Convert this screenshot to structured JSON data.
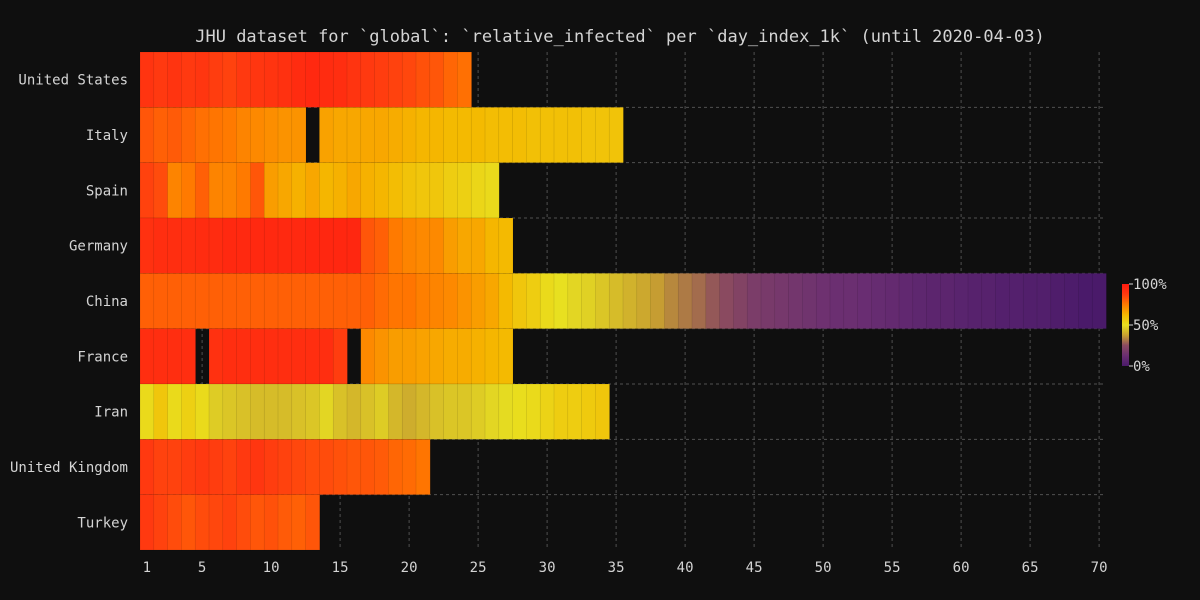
{
  "chart_data": {
    "type": "heatmap",
    "title": "JHU dataset for `global`: `relative_infected` per `day_index_1k` (until 2020-04-03)",
    "xlabel": "",
    "ylabel": "",
    "x_ticks": [
      1,
      5,
      10,
      15,
      20,
      25,
      30,
      35,
      40,
      45,
      50,
      55,
      60,
      65,
      70
    ],
    "xlim": [
      0.5,
      70.5
    ],
    "grid": true,
    "colormap": [
      "#4a1a6a",
      "#6a2e72",
      "#8a4a60",
      "#c8a030",
      "#e8e020",
      "#f5b800",
      "#ff7a00",
      "#ff3a10",
      "#ff1a10"
    ],
    "colorbar": {
      "ticks": [
        "100%",
        "50%",
        "0%"
      ],
      "range": [
        0,
        100
      ],
      "unit": "percent"
    },
    "series": [
      {
        "name": "United States",
        "values": [
          90,
          88,
          90,
          88,
          89,
          87,
          86,
          88,
          89,
          90,
          91,
          93,
          94,
          93,
          92,
          90,
          88,
          87,
          86,
          85,
          83,
          82,
          79,
          77
        ]
      },
      {
        "name": "Italy",
        "values": [
          82,
          80,
          81,
          79,
          77,
          76,
          75,
          73,
          72,
          71,
          70,
          70,
          null,
          67,
          66,
          66,
          66,
          66,
          65,
          64,
          63,
          63,
          62,
          62,
          62,
          61,
          61,
          61,
          60,
          60,
          60,
          60,
          59,
          59,
          59
        ]
      },
      {
        "name": "Spain",
        "values": [
          86,
          84,
          73,
          75,
          80,
          73,
          73,
          75,
          82,
          68,
          66,
          64,
          66,
          63,
          64,
          66,
          64,
          63,
          61,
          59,
          58,
          58,
          56,
          55,
          53,
          52
        ]
      },
      {
        "name": "Germany",
        "values": [
          91,
          92,
          92,
          92,
          93,
          93,
          94,
          94,
          94,
          94,
          94,
          94,
          95,
          95,
          95,
          95,
          82,
          80,
          75,
          73,
          72,
          72,
          68,
          66,
          66,
          63,
          62
        ]
      },
      {
        "name": "China",
        "values": [
          80,
          80,
          80,
          80,
          80,
          80,
          80,
          80,
          80,
          80,
          80,
          80,
          80,
          80,
          80,
          80,
          80,
          78,
          76,
          76,
          74,
          73,
          72,
          70,
          68,
          66,
          62,
          58,
          56,
          52,
          50,
          48,
          47,
          45,
          43,
          41,
          39,
          37,
          34,
          32,
          30,
          27,
          25,
          22,
          19,
          18,
          17,
          16,
          15,
          14,
          13,
          13,
          12,
          11,
          10,
          9,
          8,
          7,
          7,
          6,
          5,
          5,
          4,
          4,
          3,
          3,
          2,
          1,
          0,
          0
        ]
      },
      {
        "name": "France",
        "values": [
          92,
          92,
          92,
          92,
          null,
          91,
          92,
          92,
          92,
          92,
          92,
          92,
          92,
          92,
          87,
          null,
          72,
          70,
          68,
          68,
          67,
          66,
          65,
          65,
          64,
          63,
          62
        ]
      },
      {
        "name": "Iran",
        "values": [
          52,
          58,
          52,
          55,
          52,
          46,
          45,
          44,
          43,
          43,
          43,
          44,
          45,
          48,
          44,
          42,
          44,
          46,
          42,
          40,
          42,
          44,
          45,
          45,
          46,
          48,
          49,
          51,
          52,
          54,
          56,
          56,
          57,
          58
        ]
      },
      {
        "name": "United Kingdom",
        "values": [
          88,
          86,
          86,
          87,
          88,
          87,
          86,
          88,
          89,
          87,
          86,
          85,
          84,
          84,
          83,
          82,
          82,
          81,
          79,
          78,
          76
        ]
      },
      {
        "name": "Turkey",
        "values": [
          88,
          86,
          84,
          82,
          84,
          85,
          86,
          84,
          82,
          83,
          81,
          80,
          82
        ]
      }
    ]
  }
}
